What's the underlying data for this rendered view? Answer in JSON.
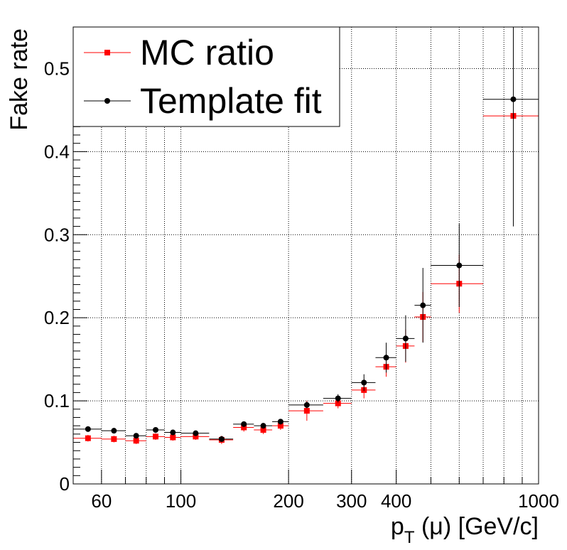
{
  "chart_data": {
    "type": "scatter",
    "title": "",
    "xlabel_main": "p",
    "xlabel_sub": "T",
    "xlabel_rest": " (μ) [GeV/c]",
    "ylabel": "Fake rate",
    "x_scale": "log",
    "xlim": [
      50,
      1000
    ],
    "ylim": [
      0,
      0.55
    ],
    "x_ticks": [
      60,
      100,
      200,
      300,
      400,
      1000
    ],
    "x_tick_labels": [
      "60",
      "100",
      "200",
      "300",
      "400",
      "1000"
    ],
    "y_ticks": [
      0,
      0.1,
      0.2,
      0.3,
      0.4,
      0.5
    ],
    "y_tick_labels": [
      "0",
      "0.1",
      "0.2",
      "0.3",
      "0.4",
      "0.5"
    ],
    "grid": true,
    "legend_position": "top-left",
    "series": [
      {
        "name": "MC ratio",
        "color": "#ff0000",
        "marker": "square",
        "points": [
          {
            "x": 55,
            "xlo": 50,
            "xhi": 60,
            "y": 0.055,
            "yerr": 0.004
          },
          {
            "x": 65,
            "xlo": 60,
            "xhi": 70,
            "y": 0.054,
            "yerr": 0.004
          },
          {
            "x": 75,
            "xlo": 70,
            "xhi": 80,
            "y": 0.052,
            "yerr": 0.004
          },
          {
            "x": 85,
            "xlo": 80,
            "xhi": 90,
            "y": 0.057,
            "yerr": 0.004
          },
          {
            "x": 95,
            "xlo": 90,
            "xhi": 100,
            "y": 0.056,
            "yerr": 0.004
          },
          {
            "x": 110,
            "xlo": 100,
            "xhi": 120,
            "y": 0.057,
            "yerr": 0.004
          },
          {
            "x": 130,
            "xlo": 120,
            "xhi": 140,
            "y": 0.053,
            "yerr": 0.005
          },
          {
            "x": 150,
            "xlo": 140,
            "xhi": 160,
            "y": 0.068,
            "yerr": 0.005
          },
          {
            "x": 170,
            "xlo": 160,
            "xhi": 180,
            "y": 0.065,
            "yerr": 0.005
          },
          {
            "x": 190,
            "xlo": 180,
            "xhi": 200,
            "y": 0.07,
            "yerr": 0.005
          },
          {
            "x": 225,
            "xlo": 200,
            "xhi": 250,
            "y": 0.088,
            "yerr": 0.012
          },
          {
            "x": 275,
            "xlo": 250,
            "xhi": 300,
            "y": 0.097,
            "yerr": 0.006
          },
          {
            "x": 325,
            "xlo": 300,
            "xhi": 350,
            "y": 0.113,
            "yerr": 0.01
          },
          {
            "x": 375,
            "xlo": 350,
            "xhi": 400,
            "y": 0.141,
            "yerr": 0.012
          },
          {
            "x": 425,
            "xlo": 400,
            "xhi": 450,
            "y": 0.166,
            "yerr": 0.02
          },
          {
            "x": 475,
            "xlo": 450,
            "xhi": 500,
            "y": 0.201,
            "yerr": 0.03
          },
          {
            "x": 600,
            "xlo": 500,
            "xhi": 700,
            "y": 0.241,
            "yerr": 0.035
          },
          {
            "x": 850,
            "xlo": 700,
            "xhi": 1000,
            "y": 0.443,
            "yerr": 0.0
          }
        ]
      },
      {
        "name": "Template fit",
        "color": "#000000",
        "marker": "circle",
        "points": [
          {
            "x": 55,
            "xlo": 50,
            "xhi": 60,
            "y": 0.066,
            "yerr": 0.003
          },
          {
            "x": 65,
            "xlo": 60,
            "xhi": 70,
            "y": 0.064,
            "yerr": 0.003
          },
          {
            "x": 75,
            "xlo": 70,
            "xhi": 80,
            "y": 0.058,
            "yerr": 0.003
          },
          {
            "x": 85,
            "xlo": 80,
            "xhi": 90,
            "y": 0.065,
            "yerr": 0.003
          },
          {
            "x": 95,
            "xlo": 90,
            "xhi": 100,
            "y": 0.062,
            "yerr": 0.003
          },
          {
            "x": 110,
            "xlo": 100,
            "xhi": 120,
            "y": 0.061,
            "yerr": 0.003
          },
          {
            "x": 130,
            "xlo": 120,
            "xhi": 140,
            "y": 0.054,
            "yerr": 0.003
          },
          {
            "x": 150,
            "xlo": 140,
            "xhi": 160,
            "y": 0.072,
            "yerr": 0.003
          },
          {
            "x": 170,
            "xlo": 160,
            "xhi": 180,
            "y": 0.07,
            "yerr": 0.003
          },
          {
            "x": 190,
            "xlo": 180,
            "xhi": 200,
            "y": 0.075,
            "yerr": 0.003
          },
          {
            "x": 225,
            "xlo": 200,
            "xhi": 250,
            "y": 0.095,
            "yerr": 0.004
          },
          {
            "x": 275,
            "xlo": 250,
            "xhi": 300,
            "y": 0.103,
            "yerr": 0.005
          },
          {
            "x": 325,
            "xlo": 300,
            "xhi": 350,
            "y": 0.122,
            "yerr": 0.01
          },
          {
            "x": 375,
            "xlo": 350,
            "xhi": 400,
            "y": 0.152,
            "yerr": 0.018
          },
          {
            "x": 425,
            "xlo": 400,
            "xhi": 450,
            "y": 0.175,
            "yerr": 0.028
          },
          {
            "x": 475,
            "xlo": 450,
            "xhi": 500,
            "y": 0.215,
            "yerr": 0.045
          },
          {
            "x": 600,
            "xlo": 500,
            "xhi": 700,
            "y": 0.263,
            "yerr": 0.05
          },
          {
            "x": 850,
            "xlo": 700,
            "xhi": 1000,
            "y": 0.463,
            "yerr": 0.153
          }
        ]
      }
    ]
  }
}
